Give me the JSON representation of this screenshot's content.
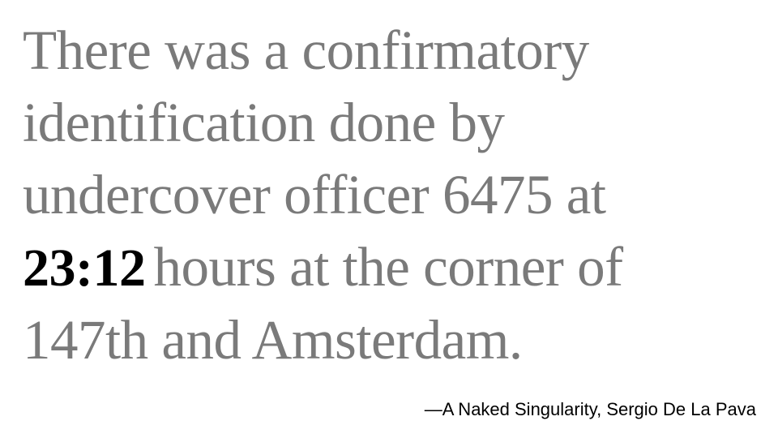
{
  "quote": {
    "line1": "There was a confirmatory",
    "line2": "identification done by",
    "line3": "undercover officer 6475 at",
    "line4_time": "23:12",
    "line4_rest": "hours at the corner of",
    "line5": "147th and Amsterdam."
  },
  "attribution": "—A Naked Singularity, Sergio De La Pava",
  "colors": {
    "quote_text": "#7a7a7a",
    "highlight_time": "#000000",
    "attribution_text": "#000000",
    "background": "#ffffff"
  }
}
